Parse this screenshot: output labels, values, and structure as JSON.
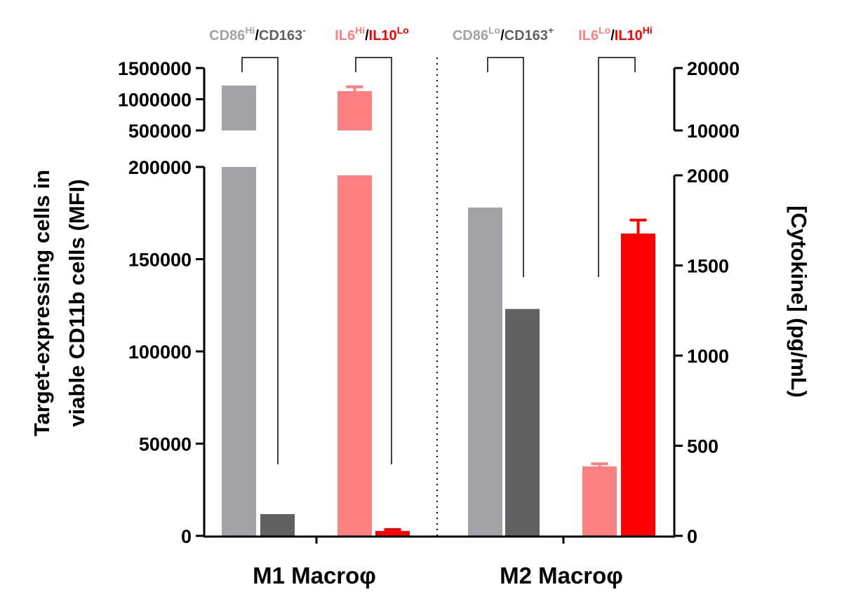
{
  "chart_data": {
    "type": "bar",
    "categories": [
      "M1 Macroφ",
      "M2 Macroφ"
    ],
    "left_axis": {
      "label_lines": [
        "Target-expressing cells in",
        "viable CD11b cells (MFI)"
      ],
      "segments": [
        {
          "range": [
            0,
            200000
          ],
          "ticks": [
            0,
            50000,
            100000,
            150000,
            200000
          ],
          "tick_labels": [
            "0",
            "50000",
            "100000",
            "150000",
            "200000"
          ]
        },
        {
          "range": [
            500000,
            1500000
          ],
          "ticks": [
            500000,
            1000000,
            1500000
          ],
          "tick_labels": [
            "500000",
            "1000000",
            "1500000"
          ]
        }
      ]
    },
    "right_axis": {
      "label": "[Cytokine] (pg/mL)",
      "segments": [
        {
          "range": [
            0,
            2000
          ],
          "ticks": [
            0,
            500,
            1000,
            1500,
            2000
          ],
          "tick_labels": [
            "0",
            "500",
            "1000",
            "1500",
            "2000"
          ]
        },
        {
          "range": [
            10000,
            20000
          ],
          "ticks": [
            10000,
            20000
          ],
          "tick_labels": [
            "10000",
            "20000"
          ]
        }
      ]
    },
    "series": [
      {
        "key": "CD86",
        "axis": "left",
        "color": "#a3a2a7",
        "values": [
          1220000,
          178000
        ],
        "errors": [
          null,
          null
        ]
      },
      {
        "key": "CD163",
        "axis": "left",
        "color": "#616161",
        "values": [
          11800,
          123000
        ],
        "errors": [
          null,
          null
        ]
      },
      {
        "key": "IL6",
        "axis": "right",
        "color": "#ff8080",
        "values": [
          16300,
          385
        ],
        "errors": [
          700,
          15
        ]
      },
      {
        "key": "IL10",
        "axis": "right",
        "color": "#ff0000",
        "values": [
          27,
          1677
        ],
        "errors": [
          8,
          75
        ]
      }
    ],
    "annotations": [
      {
        "parts": [
          {
            "t": "CD86",
            "c": "#a3a2a7"
          },
          {
            "t": "Hi",
            "c": "#a3a2a7",
            "sup": true
          },
          {
            "t": "/",
            "c": "#000000"
          },
          {
            "t": "CD163",
            "c": "#616161"
          },
          {
            "t": "-",
            "c": "#616161",
            "sup": true
          }
        ]
      },
      {
        "parts": [
          {
            "t": "IL6",
            "c": "#ff8080"
          },
          {
            "t": "Hi",
            "c": "#ff8080",
            "sup": true
          },
          {
            "t": "/",
            "c": "#000000"
          },
          {
            "t": "IL10",
            "c": "#ff0000"
          },
          {
            "t": "Lo",
            "c": "#ff0000",
            "sup": true
          }
        ]
      },
      {
        "parts": [
          {
            "t": "CD86",
            "c": "#a3a2a7"
          },
          {
            "t": "Lo",
            "c": "#a3a2a7",
            "sup": true
          },
          {
            "t": "/",
            "c": "#000000"
          },
          {
            "t": "CD163",
            "c": "#616161"
          },
          {
            "t": "+",
            "c": "#616161",
            "sup": true
          }
        ]
      },
      {
        "parts": [
          {
            "t": "IL6",
            "c": "#ff8080"
          },
          {
            "t": "Lo",
            "c": "#ff8080",
            "sup": true
          },
          {
            "t": "/",
            "c": "#000000"
          },
          {
            "t": "IL10",
            "c": "#ff0000"
          },
          {
            "t": "Hi",
            "c": "#ff0000",
            "sup": true
          }
        ]
      }
    ],
    "grid": false,
    "legend": "none"
  }
}
